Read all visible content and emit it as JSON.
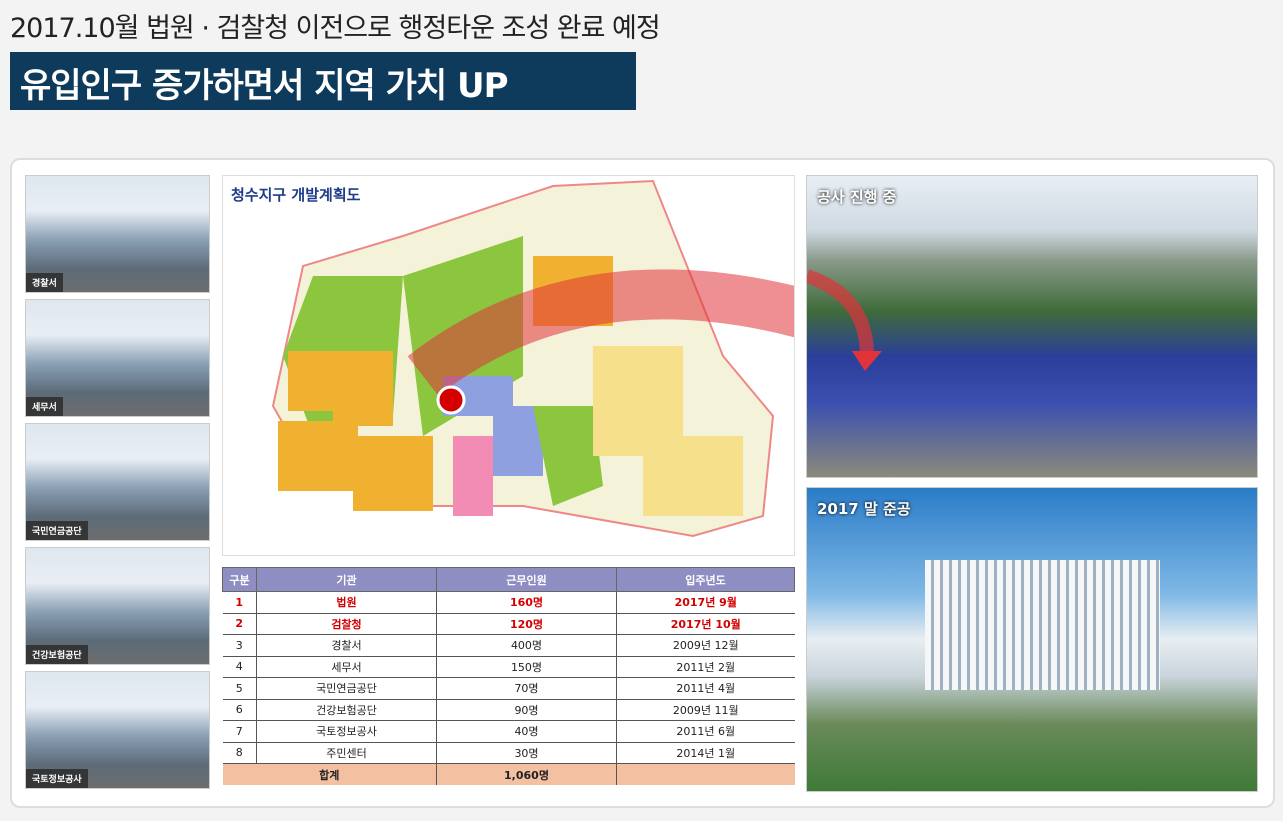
{
  "header": {
    "subtitle": "2017.10월 법원 · 검찰청 이전으로 행정타운 조성 완료 예정",
    "headline": "유입인구 증가하면서 지역 가치 UP"
  },
  "left_photos": [
    {
      "label": "경찰서"
    },
    {
      "label": "세무서"
    },
    {
      "label": "국민연금공단"
    },
    {
      "label": "건강보험공단"
    },
    {
      "label": "국토정보공사"
    }
  ],
  "map": {
    "title": "청수지구 개발계획도"
  },
  "table": {
    "headers": [
      "구분",
      "기관",
      "근무인원",
      "입주년도"
    ],
    "rows": [
      [
        "1",
        "법원",
        "160명",
        "2017년 9월"
      ],
      [
        "2",
        "검찰청",
        "120명",
        "2017년 10월"
      ],
      [
        "3",
        "경찰서",
        "400명",
        "2009년 12월"
      ],
      [
        "4",
        "세무서",
        "150명",
        "2011년 2월"
      ],
      [
        "5",
        "국민연금공단",
        "70명",
        "2011년 4월"
      ],
      [
        "6",
        "건강보험공단",
        "90명",
        "2009년 11월"
      ],
      [
        "7",
        "국토정보공사",
        "40명",
        "2011년 6월"
      ],
      [
        "8",
        "주민센터",
        "30명",
        "2014년 1월"
      ]
    ],
    "total": {
      "label": "합계",
      "value": "1,060명"
    }
  },
  "right_photos": {
    "top_title": "공사 진행 중",
    "bottom_title": "2017 말 준공"
  },
  "colors": {
    "headline_bg": "#0e3a5c",
    "table_header": "#8e8ec2",
    "highlight": "#d40000",
    "total_row": "#f4c0a2"
  }
}
